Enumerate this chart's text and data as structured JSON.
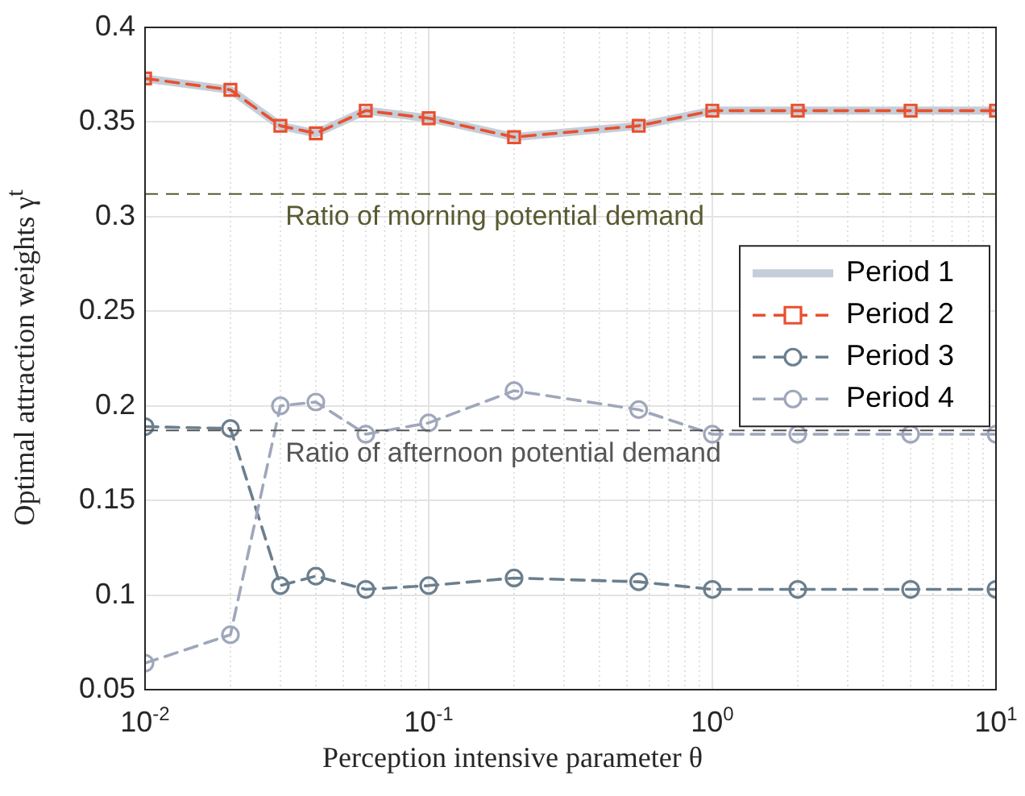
{
  "chart_data": {
    "type": "line",
    "xlabel": "Perception intensive parameter θ",
    "ylabel": "Optimal attraction weights γ$^{t}$",
    "log": "x",
    "grid": true,
    "legend": "right",
    "x": [
      0.01,
      0.02,
      0.03,
      0.04,
      0.06,
      0.1,
      0.2,
      0.55,
      1,
      2,
      5,
      10
    ],
    "xlim": [
      0.01,
      10
    ],
    "xticks": [
      {
        "value": 0.01,
        "label": "10$^{-2}$"
      },
      {
        "value": 0.1,
        "label": "10$^{-1}$"
      },
      {
        "value": 1,
        "label": "10$^{0}$"
      },
      {
        "value": 10,
        "label": "10$^{1}$"
      }
    ],
    "ylim": [
      0.05,
      0.4
    ],
    "yticks": [
      0.05,
      0.1,
      0.15,
      0.2,
      0.25,
      0.3,
      0.35,
      0.4
    ],
    "series": [
      {
        "name": "Period 1",
        "color": "#c5ced8",
        "line_style": "solid",
        "marker": "none",
        "values": [
          0.373,
          0.367,
          0.348,
          0.344,
          0.356,
          0.352,
          0.342,
          0.348,
          0.356,
          0.356,
          0.356,
          0.356
        ]
      },
      {
        "name": "Period 2",
        "color": "#e8502f",
        "line_style": "dashed",
        "marker": "square",
        "values": [
          0.373,
          0.367,
          0.348,
          0.344,
          0.356,
          0.352,
          0.342,
          0.348,
          0.356,
          0.356,
          0.356,
          0.356
        ]
      },
      {
        "name": "Period 3",
        "color": "#6b7f8e",
        "line_style": "dashed",
        "marker": "circle",
        "values": [
          0.189,
          0.188,
          0.105,
          0.11,
          0.103,
          0.105,
          0.109,
          0.107,
          0.103,
          0.103,
          0.103,
          0.103
        ]
      },
      {
        "name": "Period 4",
        "color": "#9fa7bb",
        "line_style": "dashed",
        "marker": "circle",
        "values": [
          0.064,
          0.079,
          0.2,
          0.202,
          0.185,
          0.191,
          0.208,
          0.198,
          0.185,
          0.185,
          0.185,
          0.185
        ]
      }
    ],
    "ref_lines": [
      {
        "axis": "y",
        "value": 0.312,
        "label": "Ratio of morning potential demand",
        "color": "#5a5a32",
        "line_style": "dashed"
      },
      {
        "axis": "y",
        "value": 0.187,
        "label": "Ratio of afternoon potential demand",
        "color": "#555555",
        "line_style": "dashed"
      }
    ]
  }
}
